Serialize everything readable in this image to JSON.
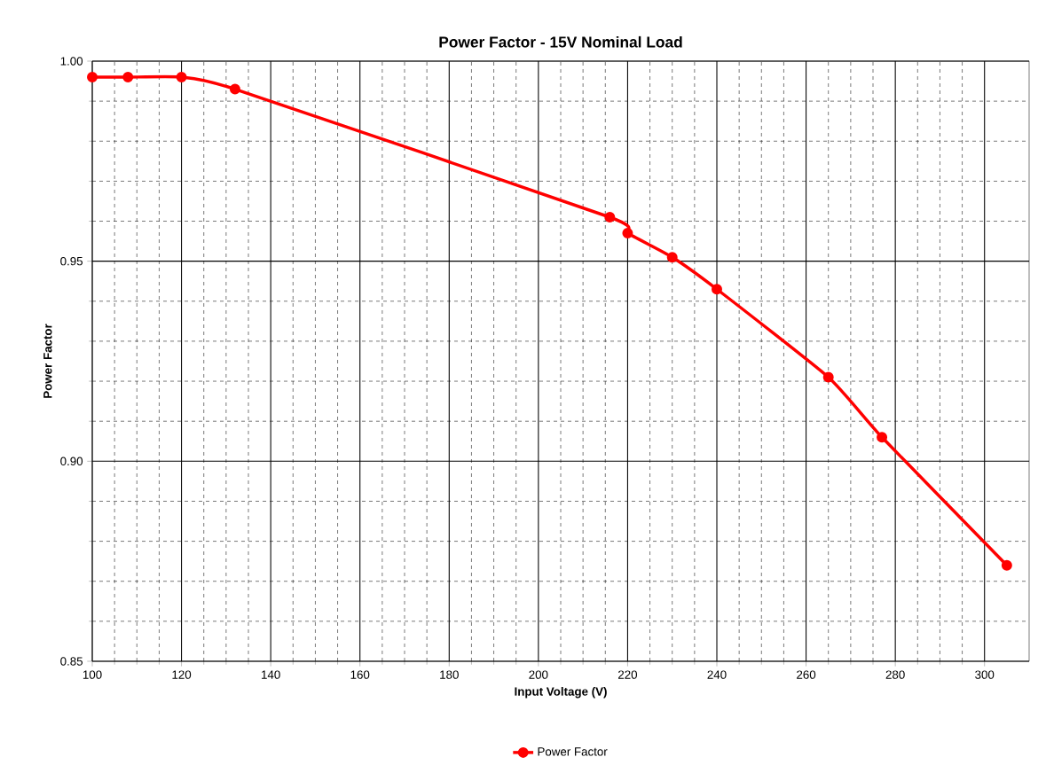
{
  "chart_data": {
    "type": "line",
    "title": "Power Factor - 15V Nominal Load",
    "xlabel": "Input Voltage (V)",
    "ylabel": "Power Factor",
    "x": [
      100,
      108,
      120,
      132,
      216,
      220,
      230,
      240,
      265,
      277,
      305
    ],
    "series": [
      {
        "name": "Power Factor",
        "color": "#ff0000",
        "values": [
          0.996,
          0.996,
          0.996,
          0.993,
          0.961,
          0.957,
          0.951,
          0.943,
          0.921,
          0.906,
          0.874
        ]
      }
    ],
    "xlim": [
      100,
      310
    ],
    "xticks": [
      100,
      120,
      140,
      160,
      180,
      200,
      220,
      240,
      260,
      280,
      300
    ],
    "ylim": [
      0.85,
      1.0
    ],
    "yticks": [
      {
        "value": 0.85,
        "label": "0.85"
      },
      {
        "value": 0.9,
        "label": "0.90"
      },
      {
        "value": 0.95,
        "label": "0.95"
      },
      {
        "value": 1.0,
        "label": "1.00"
      }
    ],
    "grid": true,
    "legend": "bottom",
    "marker": "circle",
    "line_style": "solid"
  }
}
